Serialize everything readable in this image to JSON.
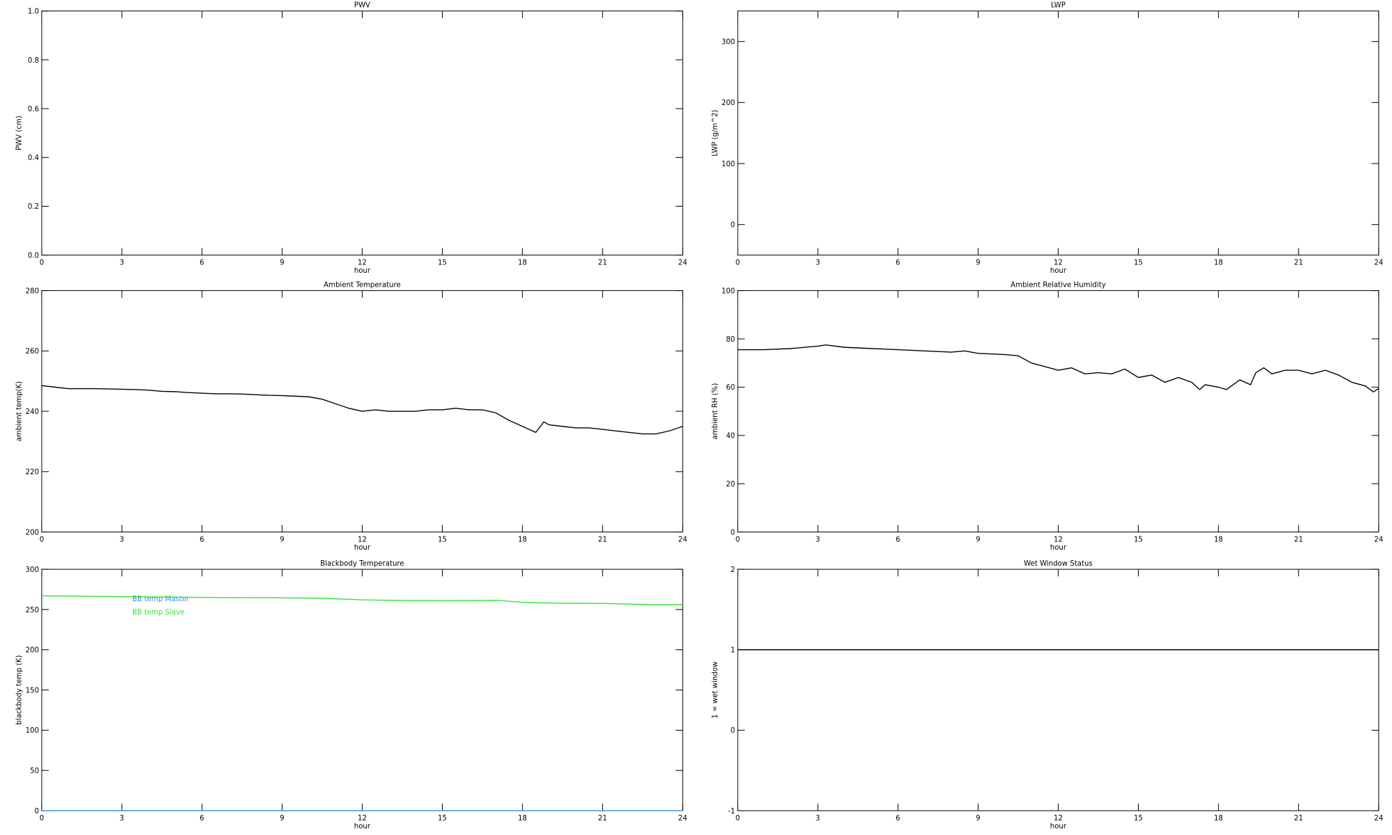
{
  "chart_data": [
    {
      "type": "line",
      "title": "PWV",
      "xlabel": "hour",
      "ylabel": "PWV (cm)",
      "xlim": [
        0,
        24
      ],
      "xticks": [
        0,
        3,
        6,
        9,
        12,
        15,
        18,
        21,
        24
      ],
      "ylim": [
        0,
        1
      ],
      "yticks": [
        {
          "value": 0,
          "label": "0.0"
        },
        0.2,
        0.4,
        0.6,
        0.8,
        {
          "value": 1,
          "label": "1.0"
        }
      ],
      "series": []
    },
    {
      "type": "line",
      "title": "LWP",
      "xlabel": "hour",
      "ylabel": "LWP (g/m^2)",
      "xlim": [
        0,
        24
      ],
      "xticks": [
        0,
        3,
        6,
        9,
        12,
        15,
        18,
        21,
        24
      ],
      "ylim": [
        -50,
        350
      ],
      "yticks": [
        0,
        100,
        200,
        300
      ],
      "series": []
    },
    {
      "type": "line",
      "title": "Ambient Temperature",
      "xlabel": "hour",
      "ylabel": "ambient temp(K)",
      "xlim": [
        0,
        24
      ],
      "xticks": [
        0,
        3,
        6,
        9,
        12,
        15,
        18,
        21,
        24
      ],
      "ylim": [
        200,
        280
      ],
      "yticks": [
        200,
        220,
        240,
        260,
        280
      ],
      "series": [
        {
          "color": "#000000",
          "x": [
            0,
            0.5,
            1,
            1.5,
            2,
            2.5,
            3,
            3.5,
            4,
            4.5,
            5,
            5.5,
            6,
            6.5,
            7,
            7.5,
            8,
            8.5,
            9,
            9.5,
            10,
            10.5,
            11,
            11.5,
            12,
            12.5,
            13,
            13.5,
            14,
            14.5,
            15,
            15.5,
            16,
            16.5,
            17,
            17.5,
            18,
            18.5,
            18.8,
            19,
            19.5,
            20,
            20.5,
            21,
            21.5,
            22,
            22.5,
            23,
            23.5,
            24
          ],
          "values": [
            248.5,
            248,
            247.5,
            247.5,
            247.5,
            247.4,
            247.3,
            247.2,
            247,
            246.6,
            246.5,
            246.2,
            246,
            245.8,
            245.8,
            245.7,
            245.5,
            245.3,
            245.2,
            245,
            244.8,
            244,
            242.5,
            241,
            240,
            240.5,
            240,
            240,
            240,
            240.5,
            240.5,
            241,
            240.5,
            240.5,
            239.5,
            237,
            235,
            233,
            236.5,
            235.5,
            235,
            234.5,
            234.5,
            234,
            233.5,
            233,
            232.5,
            232.5,
            233.5,
            235
          ]
        }
      ]
    },
    {
      "type": "line",
      "title": "Ambient Relative Humidity",
      "xlabel": "hour",
      "ylabel": "ambient RH (%)",
      "xlim": [
        0,
        24
      ],
      "xticks": [
        0,
        3,
        6,
        9,
        12,
        15,
        18,
        21,
        24
      ],
      "ylim": [
        0,
        100
      ],
      "yticks": [
        0,
        20,
        40,
        60,
        80,
        100
      ],
      "series": [
        {
          "color": "#000000",
          "x": [
            0,
            1,
            2,
            3,
            3.3,
            4,
            5,
            6,
            7,
            8,
            8.5,
            9,
            10,
            10.5,
            11,
            12,
            12.5,
            13,
            13.5,
            14,
            14.5,
            15,
            15.5,
            16,
            16.5,
            17,
            17.3,
            17.5,
            18,
            18.3,
            18.8,
            19.2,
            19.4,
            19.7,
            20,
            20.5,
            21,
            21.5,
            22,
            22.5,
            23,
            23.5,
            23.8,
            24
          ],
          "values": [
            75.5,
            75.5,
            76,
            77,
            77.5,
            76.5,
            76,
            75.5,
            75,
            74.5,
            75,
            74,
            73.5,
            73,
            70,
            67,
            68,
            65.5,
            66,
            65.5,
            67.5,
            64,
            65,
            62,
            64,
            62,
            59,
            61,
            60,
            59,
            63,
            61,
            66,
            68,
            65.5,
            67,
            67,
            65.5,
            67,
            65,
            62,
            60.5,
            58,
            59.5
          ]
        }
      ]
    },
    {
      "type": "line",
      "title": "Blackbody Temperature",
      "xlabel": "hour",
      "ylabel": "blackbody temp (K)",
      "xlim": [
        0,
        24
      ],
      "xticks": [
        0,
        3,
        6,
        9,
        12,
        15,
        18,
        21,
        24
      ],
      "ylim": [
        0,
        300
      ],
      "yticks": [
        0,
        50,
        100,
        150,
        200,
        250,
        300
      ],
      "legend": "upper left",
      "series": [
        {
          "name": "BB temp Master",
          "color": "#3a8ee6",
          "x": [
            0,
            24
          ],
          "values": [
            0,
            0
          ]
        },
        {
          "name": "BB temp Slave",
          "color": "#33e533",
          "x": [
            0,
            3,
            6,
            9,
            10.5,
            12,
            13,
            15,
            17,
            18,
            19,
            21,
            23,
            24
          ],
          "values": [
            267,
            266,
            265,
            264.5,
            264,
            262,
            261.5,
            261,
            261.5,
            259,
            258,
            257.5,
            256,
            256
          ]
        }
      ]
    },
    {
      "type": "line",
      "title": "Wet Window Status",
      "xlabel": "hour",
      "ylabel": "1 = wet window",
      "xlim": [
        0,
        24
      ],
      "xticks": [
        0,
        3,
        6,
        9,
        12,
        15,
        18,
        21,
        24
      ],
      "ylim": [
        -1,
        2
      ],
      "yticks": [
        -1,
        0,
        1,
        2
      ],
      "series": [
        {
          "color": "#000000",
          "x": [
            0,
            24
          ],
          "values": [
            1,
            1
          ]
        }
      ]
    }
  ]
}
